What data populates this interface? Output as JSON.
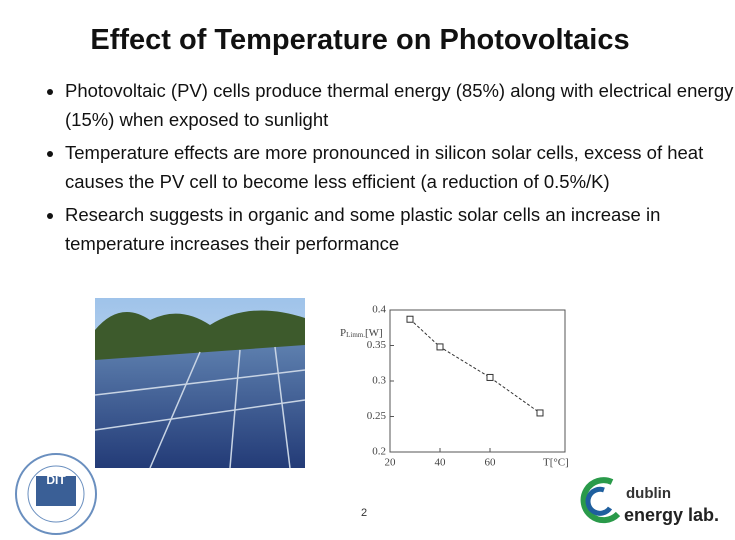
{
  "title": "Effect of Temperature on Photovoltaics",
  "bullets": [
    "Photovoltaic (PV) cells produce thermal energy (85%) along with electrical energy (15%) when exposed to sunlight",
    "Temperature effects are more pronounced in silicon solar cells, excess of heat causes the PV cell to become less efficient (a reduction of 0.5%/K)",
    "Research suggests in organic and some plastic solar cells an increase in temperature increases their performance"
  ],
  "chart_data": {
    "type": "line",
    "y_label_symbol": "P",
    "y_label_subscript": "Limm.",
    "y_label_unit": "[W]",
    "x_label": "T[°C]",
    "x": [
      28,
      40,
      60,
      80
    ],
    "series": [
      {
        "color": "#333333",
        "values": [
          0.387,
          0.348,
          0.305,
          0.255
        ]
      }
    ],
    "xlim": [
      20,
      90
    ],
    "ylim": [
      0.2,
      0.4
    ],
    "xticks": [
      20,
      40,
      60
    ],
    "yticks": [
      0.2,
      0.25,
      0.3,
      0.35,
      0.4
    ]
  },
  "page_number": "2",
  "logo_left": "DIT",
  "logo_right": {
    "line1": "dublin",
    "line2": "energy lab."
  }
}
